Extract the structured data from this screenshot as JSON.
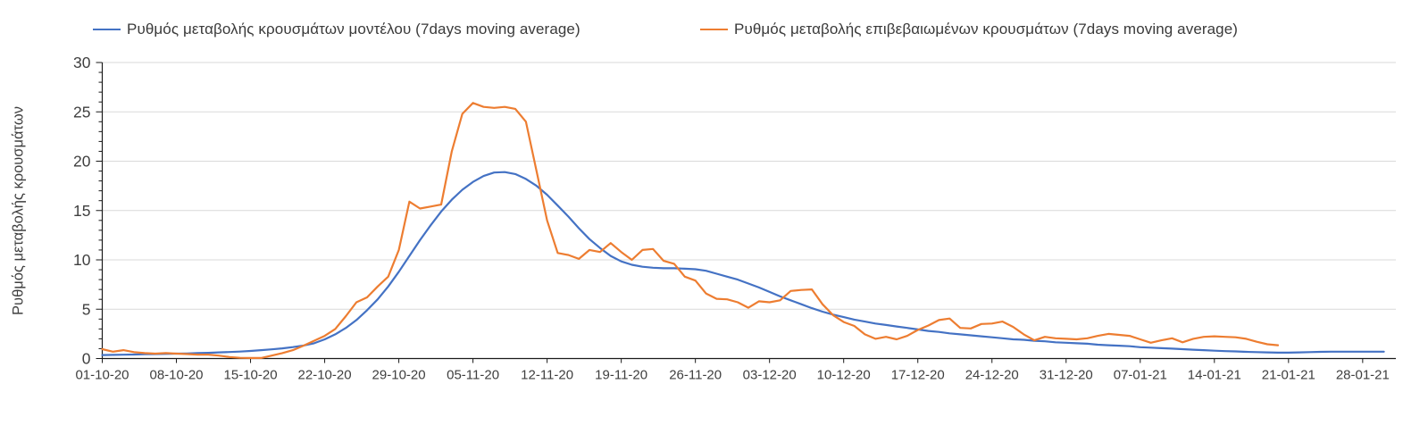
{
  "ui_colors": {
    "grid": "#d9d9d9",
    "axis": "#1a1a1a",
    "tick_text": "#3f3f3f",
    "legend_text": "#3a3a3a",
    "background": "#ffffff"
  },
  "chart_data": {
    "type": "line",
    "title": "",
    "ylabel": "Ρυθμός μεταβολής κρουσμάτων",
    "xlabel": "",
    "ylim": [
      0,
      30
    ],
    "y_ticks": [
      0,
      5,
      10,
      15,
      20,
      25,
      30
    ],
    "y_minor_step": 1,
    "grid": "horizontal",
    "legend_position": "top",
    "x_unit": "days since 01-10-20",
    "x_tick_labels": [
      "01-10-20",
      "08-10-20",
      "15-10-20",
      "22-10-20",
      "29-10-20",
      "05-11-20",
      "12-11-20",
      "19-11-20",
      "26-11-20",
      "03-12-20",
      "10-12-20",
      "17-12-20",
      "24-12-20",
      "31-12-20",
      "07-01-21",
      "14-01-21",
      "21-01-21",
      "28-01-21"
    ],
    "x_tick_days": [
      0,
      7,
      14,
      21,
      28,
      35,
      42,
      49,
      56,
      63,
      70,
      77,
      84,
      91,
      98,
      105,
      112,
      119
    ],
    "series": [
      {
        "name": "Ρυθμός μεταβολής κρουσμάτων μοντέλου (7days moving average)",
        "color": "#4472C4",
        "start_day": 0,
        "values": [
          0.35,
          0.37,
          0.39,
          0.41,
          0.43,
          0.45,
          0.47,
          0.5,
          0.52,
          0.55,
          0.58,
          0.62,
          0.66,
          0.71,
          0.77,
          0.85,
          0.93,
          1.03,
          1.16,
          1.32,
          1.55,
          1.95,
          2.45,
          3.1,
          3.9,
          4.9,
          6.0,
          7.3,
          8.8,
          10.4,
          12.0,
          13.5,
          14.9,
          16.1,
          17.1,
          17.9,
          18.5,
          18.85,
          18.9,
          18.7,
          18.2,
          17.5,
          16.6,
          15.5,
          14.4,
          13.2,
          12.1,
          11.2,
          10.4,
          9.85,
          9.5,
          9.3,
          9.2,
          9.15,
          9.15,
          9.1,
          9.05,
          8.9,
          8.6,
          8.3,
          8.0,
          7.6,
          7.2,
          6.75,
          6.3,
          5.9,
          5.5,
          5.1,
          4.75,
          4.45,
          4.2,
          3.95,
          3.75,
          3.55,
          3.4,
          3.25,
          3.1,
          2.95,
          2.8,
          2.7,
          2.55,
          2.45,
          2.35,
          2.25,
          2.15,
          2.05,
          1.95,
          1.9,
          1.8,
          1.75,
          1.65,
          1.6,
          1.55,
          1.5,
          1.4,
          1.35,
          1.3,
          1.25,
          1.15,
          1.1,
          1.05,
          1.0,
          0.95,
          0.9,
          0.85,
          0.8,
          0.75,
          0.72,
          0.68,
          0.65,
          0.62,
          0.6,
          0.6,
          0.62,
          0.65,
          0.68,
          0.7,
          0.7,
          0.7,
          0.7,
          0.7,
          0.7
        ]
      },
      {
        "name": "Ρυθμός μεταβολής επιβεβαιωμένων κρουσμάτων (7days moving average)",
        "color": "#ED7D31",
        "start_day": 0,
        "values": [
          0.95,
          0.7,
          0.85,
          0.65,
          0.55,
          0.5,
          0.55,
          0.5,
          0.45,
          0.4,
          0.4,
          0.3,
          0.15,
          0.07,
          0.05,
          0.05,
          0.3,
          0.55,
          0.85,
          1.3,
          1.8,
          2.3,
          3.0,
          4.3,
          5.7,
          6.2,
          7.3,
          8.3,
          11.0,
          15.9,
          15.2,
          15.4,
          15.6,
          21.0,
          24.8,
          25.9,
          25.5,
          25.4,
          25.5,
          25.3,
          24.0,
          19.0,
          14.0,
          10.7,
          10.5,
          10.1,
          11.0,
          10.8,
          11.7,
          10.8,
          10.0,
          11.0,
          11.1,
          9.9,
          9.6,
          8.3,
          7.9,
          6.6,
          6.05,
          6.0,
          5.7,
          5.15,
          5.8,
          5.7,
          5.9,
          6.85,
          6.95,
          7.0,
          5.5,
          4.4,
          3.7,
          3.3,
          2.45,
          2.0,
          2.2,
          1.95,
          2.3,
          2.9,
          3.35,
          3.9,
          4.05,
          3.1,
          3.05,
          3.5,
          3.55,
          3.75,
          3.2,
          2.45,
          1.85,
          2.2,
          2.05,
          2.0,
          1.95,
          2.05,
          2.3,
          2.5,
          2.4,
          2.3,
          1.95,
          1.6,
          1.85,
          2.05,
          1.65,
          2.0,
          2.2,
          2.25,
          2.2,
          2.15,
          2.0,
          1.7,
          1.45,
          1.35
        ]
      }
    ]
  }
}
